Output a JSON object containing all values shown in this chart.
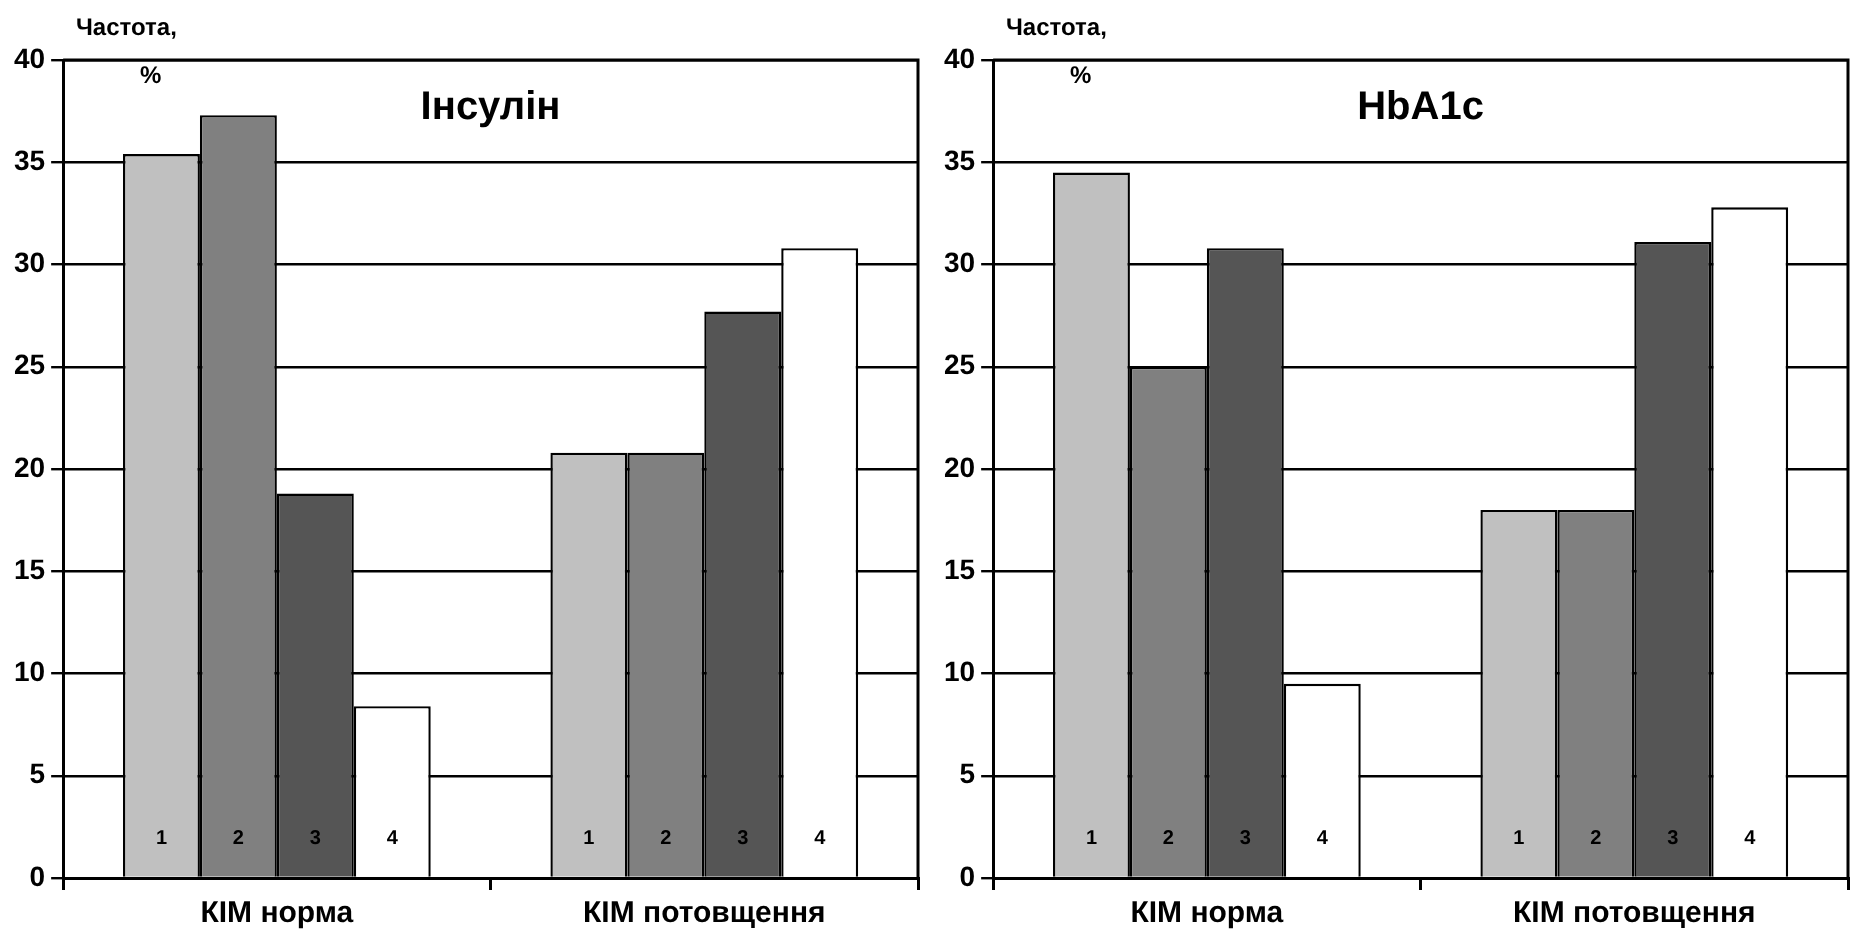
{
  "chart_data": [
    {
      "type": "bar",
      "title": "Інсулін",
      "ylabel": "Частота, %",
      "categories": [
        "КІМ норма",
        "КІМ потовщення"
      ],
      "series": [
        {
          "name": "1",
          "color": "#c0c0c0",
          "values": [
            35.4,
            20.8
          ]
        },
        {
          "name": "2",
          "color": "#808080",
          "values": [
            37.3,
            20.8
          ]
        },
        {
          "name": "3",
          "color": "#555555",
          "values": [
            18.8,
            27.7
          ]
        },
        {
          "name": "4",
          "color": "#ffffff",
          "values": [
            8.4,
            30.8
          ]
        }
      ],
      "ylim": [
        0,
        40
      ],
      "yticks": [
        0,
        5,
        10,
        15,
        20,
        25,
        30,
        35,
        40
      ],
      "grid": "y",
      "legend": false
    },
    {
      "type": "bar",
      "title": "HbA1c",
      "ylabel": "Частота, %",
      "categories": [
        "КІМ норма",
        "КІМ потовщення"
      ],
      "series": [
        {
          "name": "1",
          "color": "#c0c0c0",
          "values": [
            34.5,
            18.0
          ]
        },
        {
          "name": "2",
          "color": "#808080",
          "values": [
            25.0,
            18.0
          ]
        },
        {
          "name": "3",
          "color": "#555555",
          "values": [
            30.8,
            31.1
          ]
        },
        {
          "name": "4",
          "color": "#ffffff",
          "values": [
            9.5,
            32.8
          ]
        }
      ],
      "ylim": [
        0,
        40
      ],
      "yticks": [
        0,
        5,
        10,
        15,
        20,
        25,
        30,
        35,
        40
      ],
      "grid": "y",
      "legend": false
    }
  ]
}
